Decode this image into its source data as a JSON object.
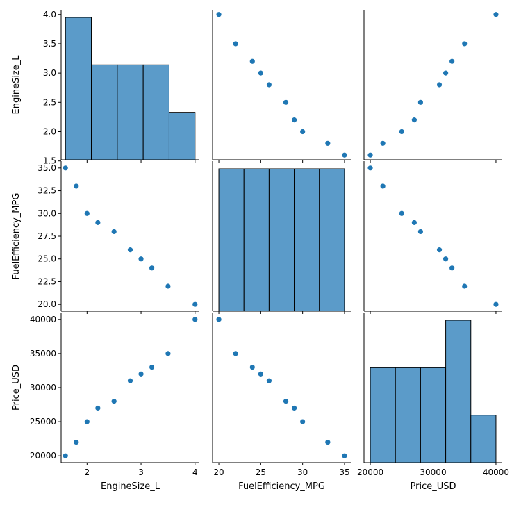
{
  "chart_data": {
    "type": "pairplot",
    "variables": [
      "EngineSize_L",
      "FuelEfficiency_MPG",
      "Price_USD"
    ],
    "data": {
      "EngineSize_L": [
        1.6,
        1.8,
        2.0,
        2.2,
        2.5,
        2.8,
        3.0,
        3.2,
        3.5,
        4.0
      ],
      "FuelEfficiency_MPG": [
        35,
        33,
        30,
        29,
        28,
        26,
        25,
        24,
        22,
        20
      ],
      "Price_USD": [
        20000,
        22000,
        25000,
        27000,
        28000,
        31000,
        32000,
        33000,
        35000,
        40000
      ]
    },
    "histograms": {
      "EngineSize_L": {
        "bins": [
          1.6,
          2.08,
          2.56,
          3.04,
          3.52,
          4.0
        ],
        "counts": [
          3,
          2,
          2,
          2,
          1
        ]
      },
      "FuelEfficiency_MPG": {
        "bins": [
          20,
          23,
          26,
          29,
          32,
          35
        ],
        "counts": [
          2,
          2,
          2,
          2,
          2
        ]
      },
      "Price_USD": {
        "bins": [
          20000,
          24000,
          28000,
          32000,
          36000,
          40000
        ],
        "counts": [
          2,
          2,
          2,
          3,
          1
        ]
      }
    },
    "axes": {
      "EngineSize_L": {
        "label": "EngineSize_L",
        "range": [
          1.52,
          4.08
        ],
        "ticks": [
          1.5,
          2.0,
          2.5,
          3.0,
          3.5,
          4.0
        ],
        "tick_labels": [
          "1.5",
          "2.0",
          "2.5",
          "3.0",
          "3.5",
          "4.0"
        ],
        "x_ticks": [
          2,
          3,
          4
        ],
        "x_tick_labels": [
          "2",
          "3",
          "4"
        ]
      },
      "FuelEfficiency_MPG": {
        "label": "FuelEfficiency_MPG",
        "range": [
          19.25,
          35.75
        ],
        "ticks": [
          20.0,
          22.5,
          25.0,
          27.5,
          30.0,
          32.5,
          35.0
        ],
        "tick_labels": [
          "20.0",
          "22.5",
          "25.0",
          "27.5",
          "30.0",
          "32.5",
          "35.0"
        ],
        "x_ticks": [
          20,
          25,
          30,
          35
        ],
        "x_tick_labels": [
          "20",
          "25",
          "30",
          "35"
        ]
      },
      "Price_USD": {
        "label": "Price_USD",
        "range": [
          19000,
          41000
        ],
        "ticks": [
          20000,
          25000,
          30000,
          35000,
          40000
        ],
        "tick_labels": [
          "20000",
          "25000",
          "30000",
          "35000",
          "40000"
        ],
        "x_ticks": [
          20000,
          30000,
          40000
        ],
        "x_tick_labels": [
          "20000",
          "30000",
          "40000"
        ]
      }
    },
    "colors": {
      "marker": "#1f77b4",
      "bar_fill": "#5b9bc9",
      "bar_edge": "#000000"
    }
  }
}
